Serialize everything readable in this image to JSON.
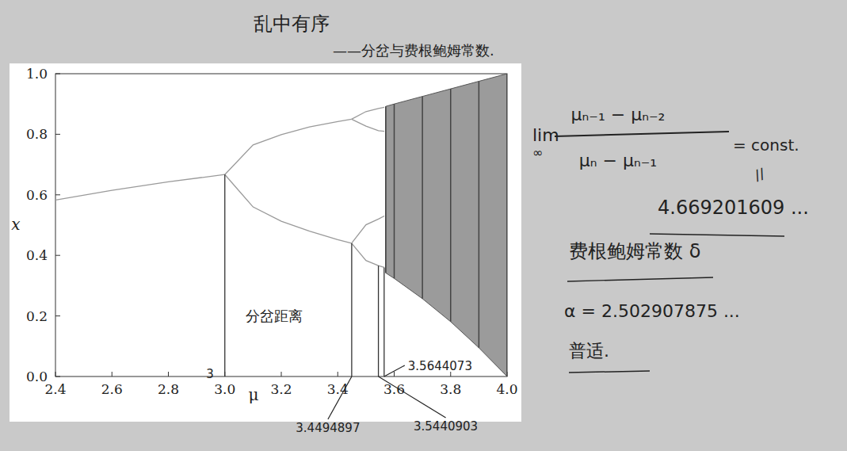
{
  "chart_data": {
    "type": "line",
    "title": "乱中有序",
    "subtitle": "——分岔与费根鲍姆常数.",
    "x_label": "μ",
    "y_label": "x",
    "xlim": [
      2.4,
      4.0
    ],
    "xticks": [
      2.4,
      2.6,
      2.8,
      {
        "value": 3,
        "label": "3.0"
      },
      3.2,
      3.4,
      3.6,
      3.8,
      {
        "value": 4,
        "label": "4.0"
      }
    ],
    "ylim": [
      0,
      1
    ],
    "yticks": [
      {
        "value": 0,
        "label": "0.0"
      },
      0.2,
      0.4,
      0.6,
      0.8,
      {
        "value": 1,
        "label": "1.0"
      }
    ],
    "grid": false,
    "series": [
      {
        "type": "line",
        "color": "#9a9a9a",
        "x": [
          2.4,
          2.6,
          2.8,
          3.0
        ],
        "values": [
          0.583,
          0.615,
          0.643,
          0.667
        ]
      },
      {
        "type": "line",
        "color": "#9a9a9a",
        "x": [
          3.0,
          3.1,
          3.2,
          3.3,
          3.4,
          3.449
        ],
        "values": [
          0.667,
          0.765,
          0.799,
          0.824,
          0.842,
          0.85
        ]
      },
      {
        "type": "line",
        "color": "#9a9a9a",
        "x": [
          3.0,
          3.1,
          3.2,
          3.3,
          3.4,
          3.449
        ],
        "values": [
          0.667,
          0.56,
          0.513,
          0.48,
          0.452,
          0.44
        ]
      },
      {
        "type": "line",
        "color": "#9a9a9a",
        "x": [
          3.449,
          3.5,
          3.544,
          3.565
        ],
        "values": [
          0.85,
          0.875,
          0.885,
          0.889
        ]
      },
      {
        "type": "line",
        "color": "#9a9a9a",
        "x": [
          3.449,
          3.5,
          3.544,
          3.565
        ],
        "values": [
          0.85,
          0.827,
          0.812,
          0.81
        ]
      },
      {
        "type": "line",
        "color": "#9a9a9a",
        "x": [
          3.449,
          3.5,
          3.544,
          3.565
        ],
        "values": [
          0.44,
          0.383,
          0.366,
          0.36
        ]
      },
      {
        "type": "line",
        "color": "#9a9a9a",
        "x": [
          3.449,
          3.5,
          3.544,
          3.565
        ],
        "values": [
          0.44,
          0.501,
          0.52,
          0.53
        ]
      },
      {
        "type": "band",
        "color": "#7a7a7a",
        "x": [
          3.57,
          3.6,
          3.7,
          3.8,
          3.9,
          4.0
        ],
        "values": [
          0.892,
          0.9,
          0.925,
          0.95,
          0.975,
          1.0
        ],
        "lower": [
          0.342,
          0.324,
          0.257,
          0.181,
          0.095,
          0.0
        ]
      }
    ],
    "bifurcations": [
      {
        "mu": 3,
        "x": 0.667
      },
      {
        "mu": 3.4494897,
        "x": 0.44
      },
      {
        "mu": 3.5440903,
        "x": 0.366
      },
      {
        "mu": 3.5644073,
        "x": 0.36
      }
    ],
    "annotations": [
      "分岔距离",
      "lim",
      "∞",
      "μₙ₋₁ − μₙ₋₂",
      "μₙ − μₙ₋₁",
      "= const.",
      "//",
      "4.669201609 ...",
      "费根鲍姆常数 δ",
      "α = 2.502907875 ...",
      "普适."
    ]
  }
}
